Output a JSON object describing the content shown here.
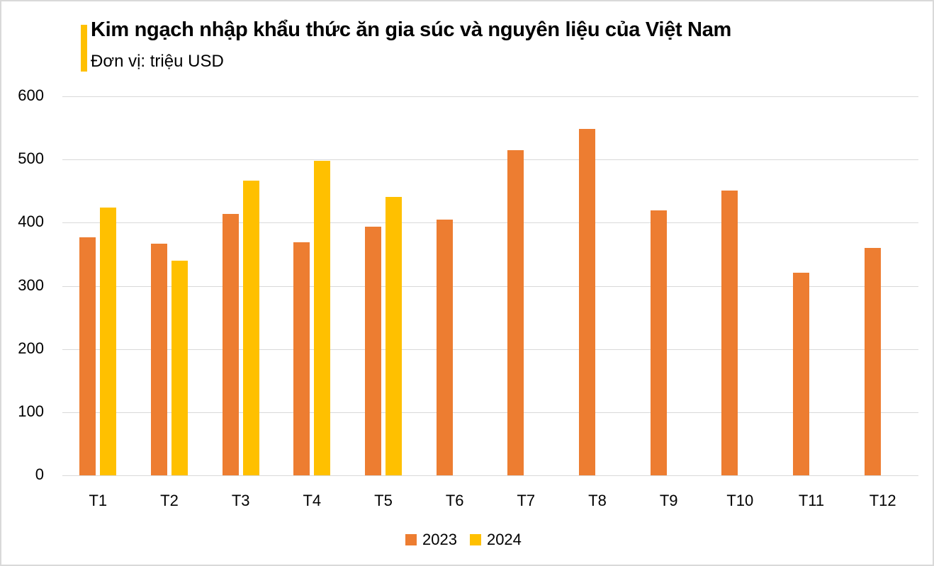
{
  "chart_data": {
    "type": "bar",
    "title": "Kim ngạch nhập khẩu thức ăn gia súc và nguyên liệu của Việt Nam",
    "subtitle": "Đơn vị: triệu USD",
    "xlabel": "",
    "ylabel": "",
    "ylim": [
      0,
      600
    ],
    "yticks": [
      "0",
      "100",
      "200",
      "300",
      "400",
      "500",
      "600"
    ],
    "grid": true,
    "legend_position": "bottom",
    "categories": [
      "T1",
      "T2",
      "T3",
      "T4",
      "T5",
      "T6",
      "T7",
      "T8",
      "T9",
      "T10",
      "T11",
      "T12"
    ],
    "series": [
      {
        "name": "2023",
        "color": "#ed7d31",
        "values": [
          377,
          367,
          414,
          369,
          394,
          405,
          515,
          548,
          419,
          451,
          321,
          360
        ]
      },
      {
        "name": "2024",
        "color": "#ffc000",
        "values": [
          424,
          340,
          467,
          498,
          441,
          null,
          null,
          null,
          null,
          null,
          null,
          null
        ]
      }
    ]
  },
  "colors": {
    "accent": "#ffc000",
    "series_2023": "#ed7d31",
    "series_2024": "#ffc000",
    "grid": "#d9d9d9",
    "border": "#d9d9d9"
  }
}
